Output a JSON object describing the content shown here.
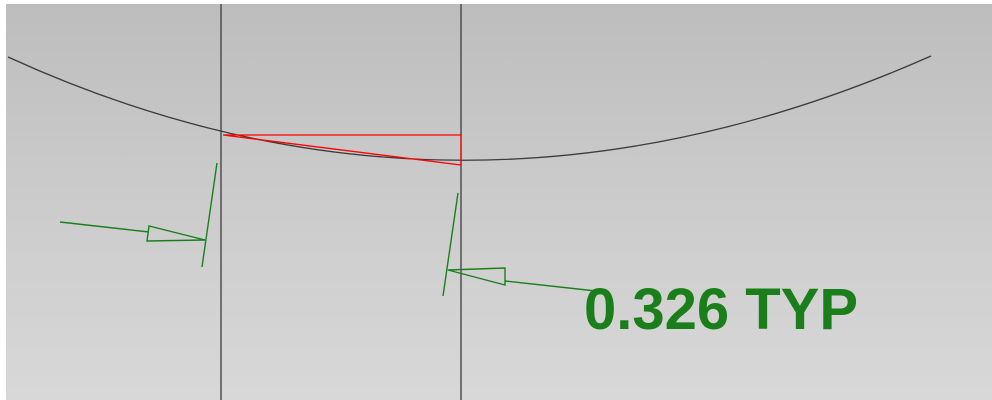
{
  "colors": {
    "background_top": "#bdbdbd",
    "background_bottom": "#d8d8d8",
    "geometry_line": "#3c3c3c",
    "highlight": "#ff0000",
    "dimension": "#1a7f1a"
  },
  "dimension": {
    "value": "0.326 TYP"
  }
}
